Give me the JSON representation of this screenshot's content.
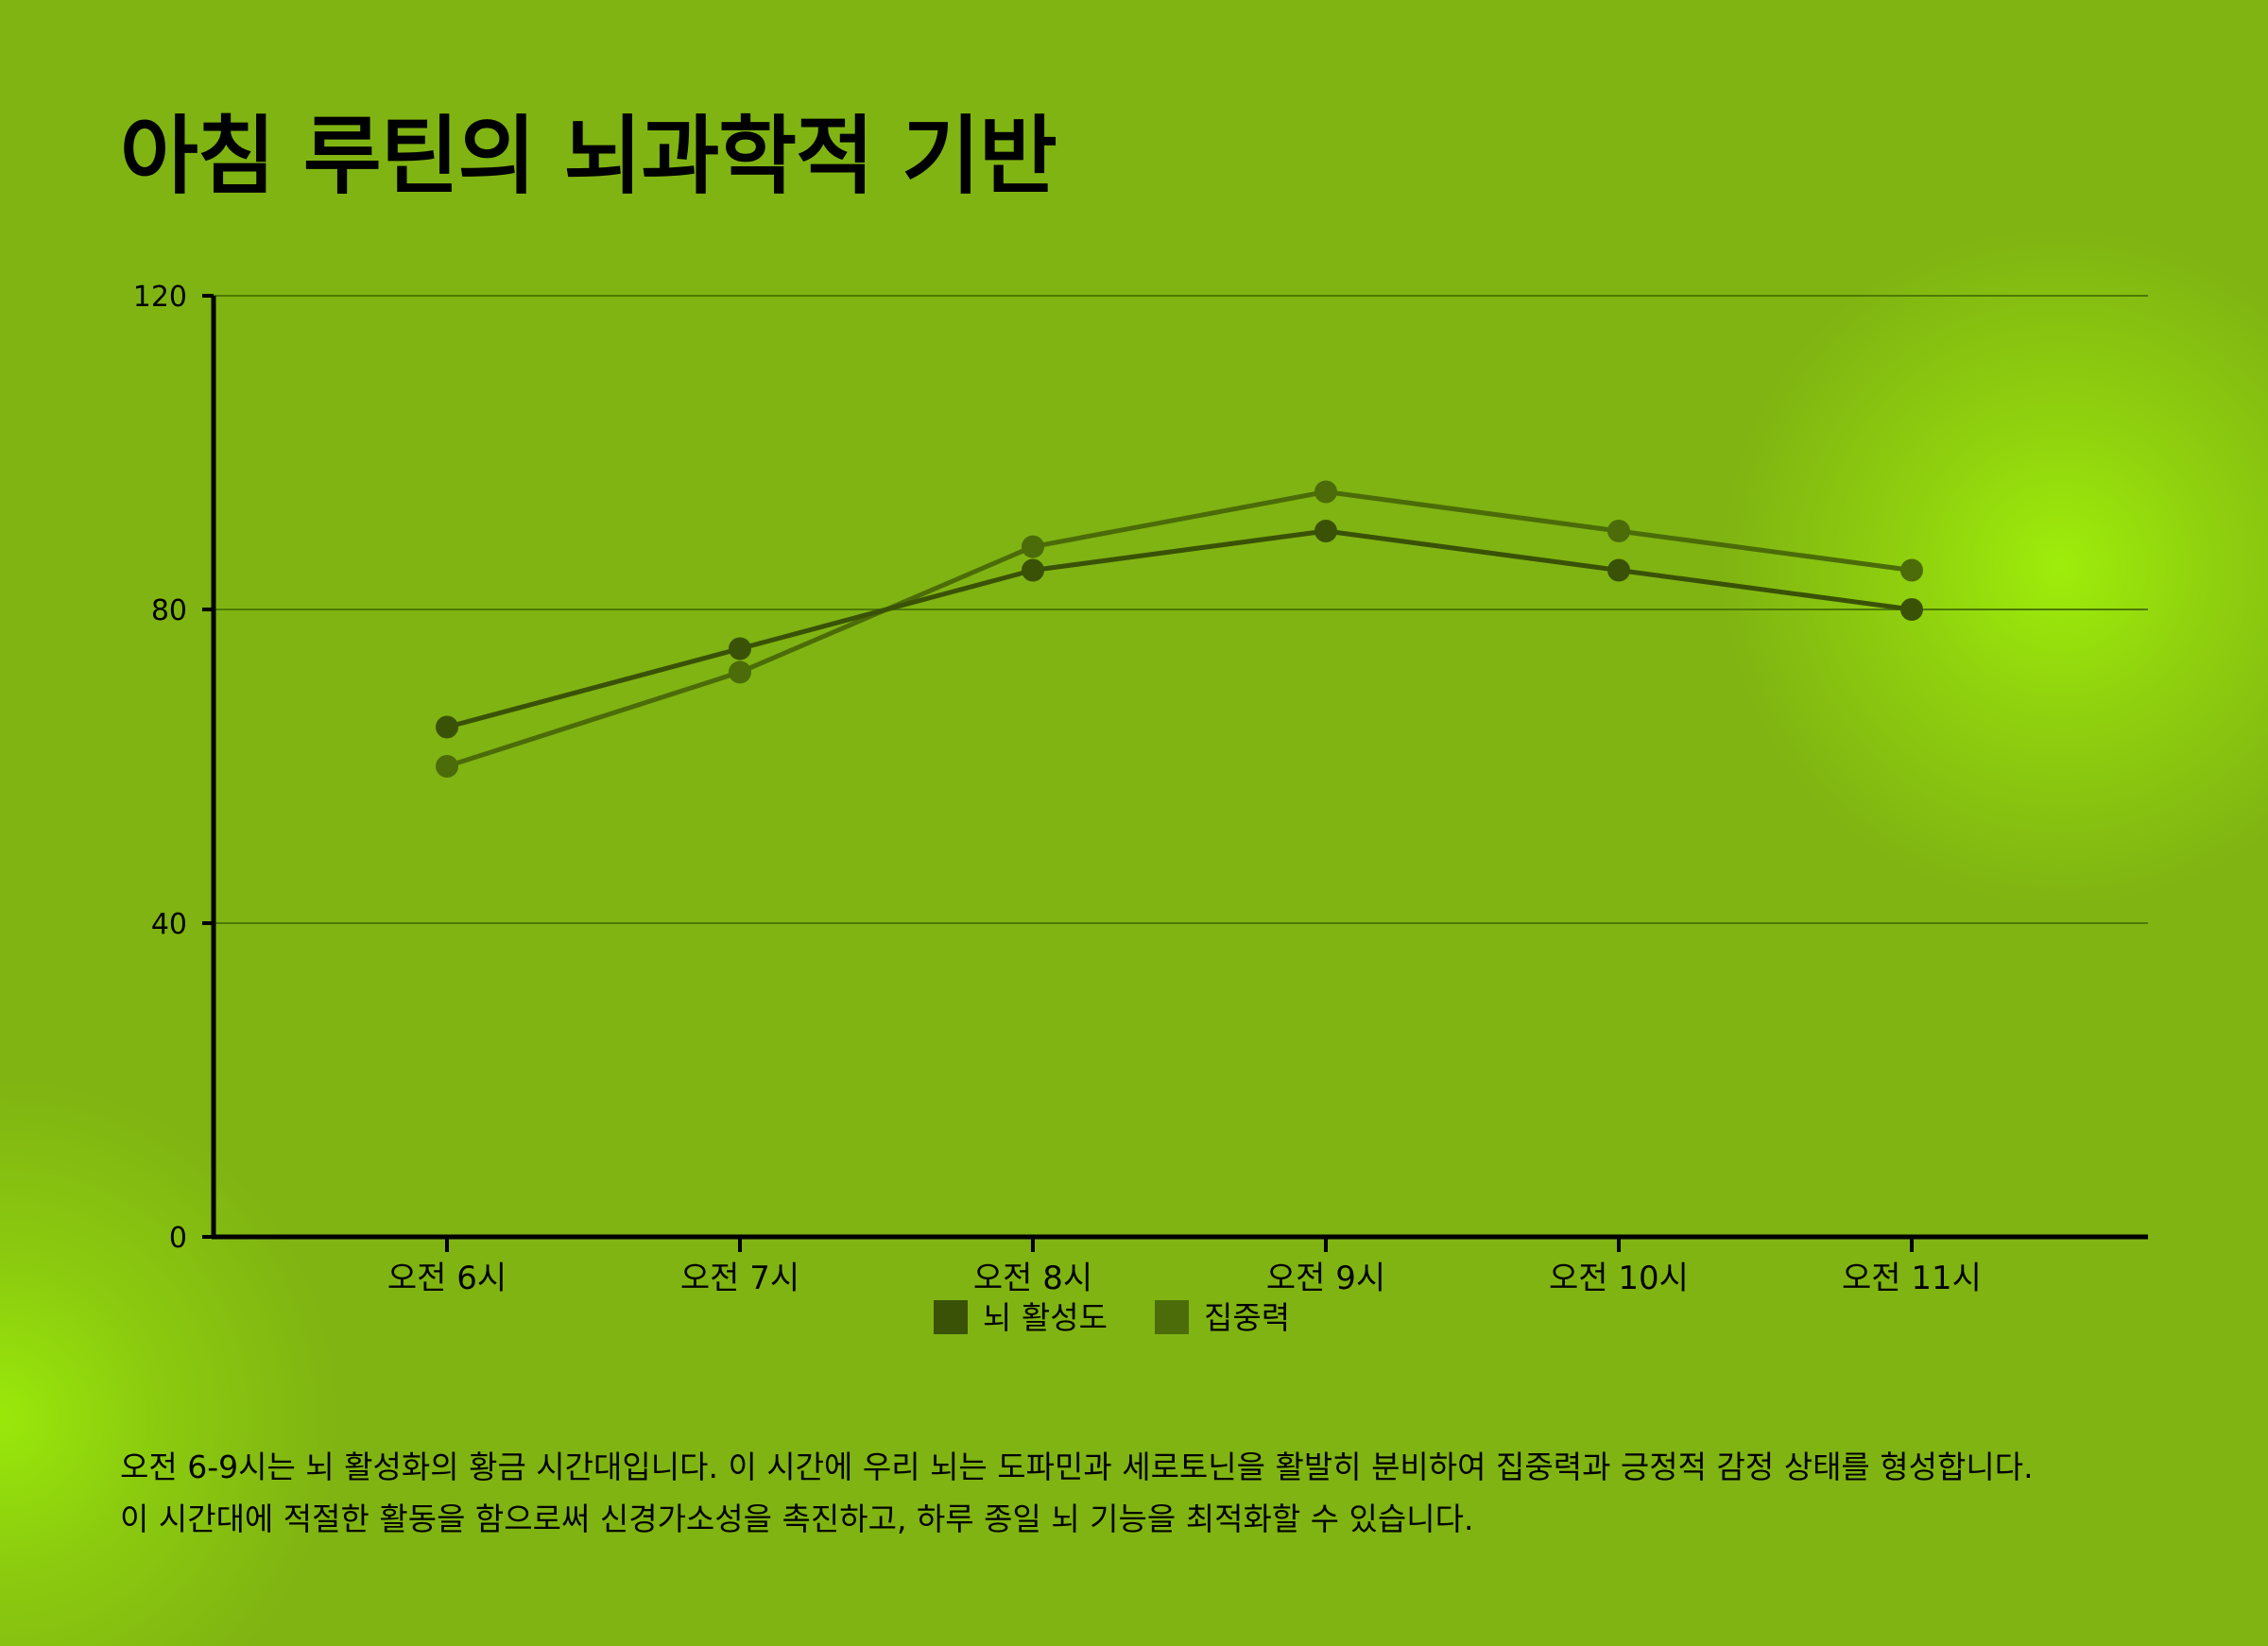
{
  "title": "아침 루틴의 뇌과학적 기반",
  "description_lines": [
    "오전 6-9시는 뇌 활성화의 황금 시간대입니다. 이 시간에 우리 뇌는 도파민과 세로토닌을 활발히 분비하여 집중력과 긍정적 감정 상태를 형성합니다.",
    "이 시간대에 적절한 활동을 함으로써 신경가소성을 촉진하고, 하루 종일 뇌 기능을 최적화할 수 있습니다."
  ],
  "chart_data": {
    "type": "line",
    "title": "아침 루틴의 뇌과학적 기반",
    "categories": [
      "오전 6시",
      "오전 7시",
      "오전 8시",
      "오전 9시",
      "오전 10시",
      "오전 11시"
    ],
    "series": [
      {
        "name": "뇌 활성도",
        "values": [
          65,
          75,
          85,
          90,
          85,
          80
        ],
        "color": "#3a5206"
      },
      {
        "name": "집중력",
        "values": [
          60,
          72,
          88,
          95,
          90,
          85
        ],
        "color": "#4b6c08"
      }
    ],
    "ylim": [
      0,
      120
    ],
    "yticks": [
      0,
      40,
      80,
      120
    ],
    "grid": true,
    "legend": "bottom-center",
    "xlabel": "",
    "ylabel": ""
  }
}
